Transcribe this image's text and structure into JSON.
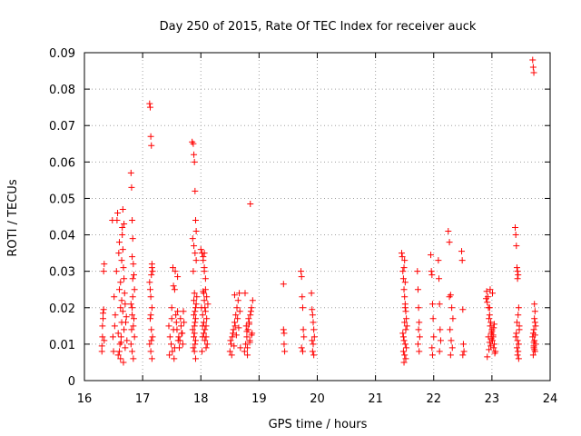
{
  "chart_data": {
    "type": "scatter",
    "title": "Day 250 of 2015, Rate Of TEC Index for receiver auck",
    "xlabel": "GPS time / hours",
    "ylabel": "ROTI / TECUs",
    "xlim": [
      16,
      24
    ],
    "ylim": [
      0,
      0.09
    ],
    "xticks": [
      "16",
      "17",
      "18",
      "19",
      "20",
      "21",
      "22",
      "23",
      "24"
    ],
    "yticks": [
      "0",
      "0.01",
      "0.02",
      "0.03",
      "0.04",
      "0.05",
      "0.06",
      "0.07",
      "0.08",
      "0.09"
    ],
    "grid": true,
    "marker": "plus",
    "color": "#ff0000",
    "x": [
      16.3,
      16.3,
      16.31,
      16.31,
      16.32,
      16.32,
      16.33,
      16.33,
      16.34,
      16.34,
      16.48,
      16.49,
      16.5,
      16.51,
      16.52,
      16.53,
      16.55,
      16.56,
      16.57,
      16.58,
      16.59,
      16.6,
      16.61,
      16.62,
      16.63,
      16.64,
      16.65,
      16.66,
      16.67,
      16.68,
      16.6,
      16.62,
      16.64,
      16.66,
      16.68,
      16.7,
      16.62,
      16.64,
      16.66,
      16.68,
      16.7,
      16.72,
      16.58,
      16.6,
      16.63,
      16.65,
      16.67,
      16.69,
      16.71,
      16.73,
      16.8,
      16.81,
      16.82,
      16.83,
      16.84,
      16.85,
      16.86,
      16.8,
      16.82,
      16.84,
      16.86,
      16.8,
      16.82,
      16.84,
      16.83,
      16.82,
      16.81,
      16.83,
      16.85,
      16.82,
      17.12,
      17.13,
      17.14,
      17.15,
      17.16,
      17.17,
      17.12,
      17.14,
      17.16,
      17.13,
      17.15,
      17.17,
      17.12,
      17.14,
      17.16,
      17.15,
      17.13,
      17.14,
      17.15,
      17.16,
      17.45,
      17.47,
      17.49,
      17.51,
      17.53,
      17.55,
      17.57,
      17.59,
      17.61,
      17.63,
      17.65,
      17.67,
      17.69,
      17.71,
      17.46,
      17.5,
      17.54,
      17.58,
      17.62,
      17.66,
      17.7,
      17.52,
      17.56,
      17.6,
      17.64,
      17.68,
      17.55,
      17.5,
      17.53,
      17.6,
      17.85,
      17.87,
      17.88,
      17.89,
      17.9,
      17.91,
      17.92,
      17.86,
      17.88,
      17.9,
      17.92,
      17.87,
      17.89,
      17.91,
      17.88,
      17.9,
      17.86,
      17.88,
      17.9,
      17.89,
      17.91,
      17.88,
      17.9,
      17.89,
      17.91,
      17.87,
      17.89,
      17.91,
      17.92,
      17.93,
      18.0,
      18.02,
      18.04,
      18.06,
      18.08,
      18.1,
      18.12,
      18.01,
      18.03,
      18.05,
      18.07,
      18.09,
      18.11,
      18.02,
      18.04,
      18.06,
      18.08,
      18.1,
      18.03,
      18.05,
      18.07,
      18.09,
      18.04,
      18.06,
      18.08,
      18.05,
      18.07,
      18.03,
      18.09,
      18.06,
      18.5,
      18.52,
      18.54,
      18.56,
      18.58,
      18.6,
      18.62,
      18.64,
      18.66,
      18.68,
      18.51,
      18.55,
      18.59,
      18.63,
      18.67,
      18.53,
      18.57,
      18.61,
      18.65,
      18.58,
      18.75,
      18.77,
      18.79,
      18.81,
      18.83,
      18.85,
      18.87,
      18.89,
      18.76,
      18.8,
      18.84,
      18.88,
      18.78,
      18.82,
      18.86,
      18.8,
      18.84,
      18.79,
      18.83,
      18.87,
      18.85,
      19.42,
      19.42,
      19.43,
      19.43,
      19.44,
      19.72,
      19.73,
      19.74,
      19.75,
      19.76,
      19.77,
      19.73,
      19.75,
      19.9,
      19.91,
      19.92,
      19.93,
      19.94,
      19.95,
      19.91,
      19.93,
      19.92,
      19.94,
      21.45,
      21.46,
      21.47,
      21.48,
      21.49,
      21.5,
      21.51,
      21.52,
      21.53,
      21.54,
      21.47,
      21.49,
      21.51,
      21.53,
      21.48,
      21.5,
      21.52,
      21.49,
      21.51,
      21.5,
      21.48,
      21.52,
      21.5,
      21.49,
      21.51,
      21.72,
      21.73,
      21.74,
      21.75,
      21.76,
      21.73,
      21.75,
      21.74,
      21.95,
      21.96,
      21.97,
      21.98,
      21.99,
      22.0,
      21.97,
      21.98,
      22.08,
      22.09,
      22.1,
      22.11,
      22.12,
      22.1,
      22.25,
      22.27,
      22.29,
      22.31,
      22.33,
      22.28,
      22.3,
      22.32,
      22.29,
      22.27,
      22.48,
      22.49,
      22.5,
      22.51,
      22.52,
      22.5,
      22.9,
      22.92,
      22.94,
      22.96,
      22.98,
      23.0,
      23.02,
      23.04,
      23.06,
      22.91,
      22.93,
      22.95,
      22.97,
      22.99,
      23.01,
      23.03,
      23.05,
      22.92,
      22.96,
      23.0,
      23.04,
      22.94,
      22.98,
      23.02,
      22.95,
      22.99,
      23.03,
      22.97,
      23.01,
      22.96,
      23.4,
      23.41,
      23.42,
      23.43,
      23.44,
      23.45,
      23.46,
      23.47,
      23.42,
      23.44,
      23.46,
      23.43,
      23.45,
      23.44,
      23.41,
      23.47,
      23.43,
      23.45,
      23.46,
      23.44,
      23.7,
      23.71,
      23.72,
      23.73,
      23.74,
      23.75,
      23.71,
      23.73,
      23.75,
      23.72,
      23.74,
      23.7,
      23.72,
      23.74,
      23.73,
      23.71,
      23.72,
      23.73,
      23.74,
      23.72
    ],
    "y": [
      0.008,
      0.0095,
      0.012,
      0.015,
      0.017,
      0.0185,
      0.0195,
      0.03,
      0.032,
      0.011,
      0.044,
      0.012,
      0.008,
      0.023,
      0.015,
      0.018,
      0.03,
      0.044,
      0.046,
      0.007,
      0.035,
      0.038,
      0.01,
      0.02,
      0.012,
      0.016,
      0.04,
      0.047,
      0.005,
      0.043,
      0.025,
      0.027,
      0.022,
      0.019,
      0.014,
      0.009,
      0.006,
      0.033,
      0.036,
      0.028,
      0.021,
      0.0175,
      0.013,
      0.008,
      0.0105,
      0.042,
      0.031,
      0.024,
      0.016,
      0.011,
      0.057,
      0.053,
      0.044,
      0.039,
      0.032,
      0.029,
      0.025,
      0.021,
      0.018,
      0.015,
      0.012,
      0.01,
      0.008,
      0.006,
      0.028,
      0.02,
      0.014,
      0.023,
      0.017,
      0.034,
      0.076,
      0.075,
      0.067,
      0.0645,
      0.032,
      0.03,
      0.027,
      0.023,
      0.02,
      0.017,
      0.014,
      0.012,
      0.01,
      0.008,
      0.006,
      0.029,
      0.025,
      0.018,
      0.011,
      0.031,
      0.015,
      0.012,
      0.01,
      0.008,
      0.026,
      0.025,
      0.018,
      0.014,
      0.011,
      0.009,
      0.017,
      0.013,
      0.01,
      0.016,
      0.007,
      0.02,
      0.006,
      0.016,
      0.012,
      0.015,
      0.019,
      0.031,
      0.03,
      0.0285,
      0.011,
      0.013,
      0.009,
      0.017,
      0.014,
      0.019,
      0.0655,
      0.065,
      0.062,
      0.06,
      0.052,
      0.044,
      0.041,
      0.039,
      0.037,
      0.035,
      0.033,
      0.03,
      0.024,
      0.02,
      0.018,
      0.016,
      0.014,
      0.012,
      0.01,
      0.008,
      0.006,
      0.022,
      0.019,
      0.015,
      0.011,
      0.009,
      0.013,
      0.017,
      0.021,
      0.023,
      0.036,
      0.035,
      0.033,
      0.03,
      0.025,
      0.023,
      0.021,
      0.02,
      0.018,
      0.016,
      0.014,
      0.012,
      0.01,
      0.008,
      0.0245,
      0.022,
      0.019,
      0.017,
      0.015,
      0.013,
      0.011,
      0.009,
      0.034,
      0.031,
      0.028,
      0.024,
      0.02,
      0.012,
      0.015,
      0.035,
      0.008,
      0.01,
      0.012,
      0.014,
      0.016,
      0.018,
      0.02,
      0.022,
      0.024,
      0.009,
      0.011,
      0.013,
      0.015,
      0.017,
      0.019,
      0.007,
      0.0095,
      0.0125,
      0.0145,
      0.0235,
      0.008,
      0.01,
      0.012,
      0.014,
      0.016,
      0.018,
      0.02,
      0.022,
      0.024,
      0.009,
      0.011,
      0.013,
      0.015,
      0.017,
      0.019,
      0.007,
      0.0105,
      0.0135,
      0.0155,
      0.0125,
      0.0485,
      0.0265,
      0.014,
      0.013,
      0.01,
      0.008,
      0.03,
      0.0285,
      0.023,
      0.02,
      0.014,
      0.012,
      0.009,
      0.008,
      0.024,
      0.0195,
      0.018,
      0.016,
      0.014,
      0.012,
      0.011,
      0.01,
      0.008,
      0.007,
      0.035,
      0.034,
      0.03,
      0.028,
      0.025,
      0.023,
      0.021,
      0.019,
      0.017,
      0.015,
      0.013,
      0.011,
      0.01,
      0.009,
      0.008,
      0.007,
      0.006,
      0.005,
      0.02,
      0.016,
      0.012,
      0.014,
      0.033,
      0.031,
      0.027,
      0.03,
      0.025,
      0.02,
      0.016,
      0.012,
      0.01,
      0.008,
      0.014,
      0.0345,
      0.03,
      0.029,
      0.021,
      0.017,
      0.012,
      0.009,
      0.007,
      0.033,
      0.028,
      0.021,
      0.014,
      0.011,
      0.008,
      0.041,
      0.038,
      0.0235,
      0.02,
      0.017,
      0.014,
      0.011,
      0.009,
      0.007,
      0.023,
      0.0355,
      0.033,
      0.0195,
      0.01,
      0.008,
      0.007,
      0.0225,
      0.0215,
      0.02,
      0.018,
      0.016,
      0.014,
      0.012,
      0.01,
      0.008,
      0.0245,
      0.023,
      0.017,
      0.015,
      0.013,
      0.011,
      0.009,
      0.0075,
      0.0065,
      0.0105,
      0.0135,
      0.0155,
      0.012,
      0.0095,
      0.0125,
      0.0085,
      0.0115,
      0.0145,
      0.025,
      0.024,
      0.02,
      0.042,
      0.04,
      0.037,
      0.031,
      0.03,
      0.029,
      0.02,
      0.015,
      0.013,
      0.011,
      0.01,
      0.009,
      0.008,
      0.007,
      0.012,
      0.014,
      0.016,
      0.018,
      0.006,
      0.028,
      0.088,
      0.086,
      0.0845,
      0.021,
      0.019,
      0.015,
      0.013,
      0.011,
      0.01,
      0.009,
      0.008,
      0.012,
      0.014,
      0.016,
      0.017,
      0.007,
      0.0105,
      0.0085,
      0.0125,
      0.0095
    ]
  }
}
